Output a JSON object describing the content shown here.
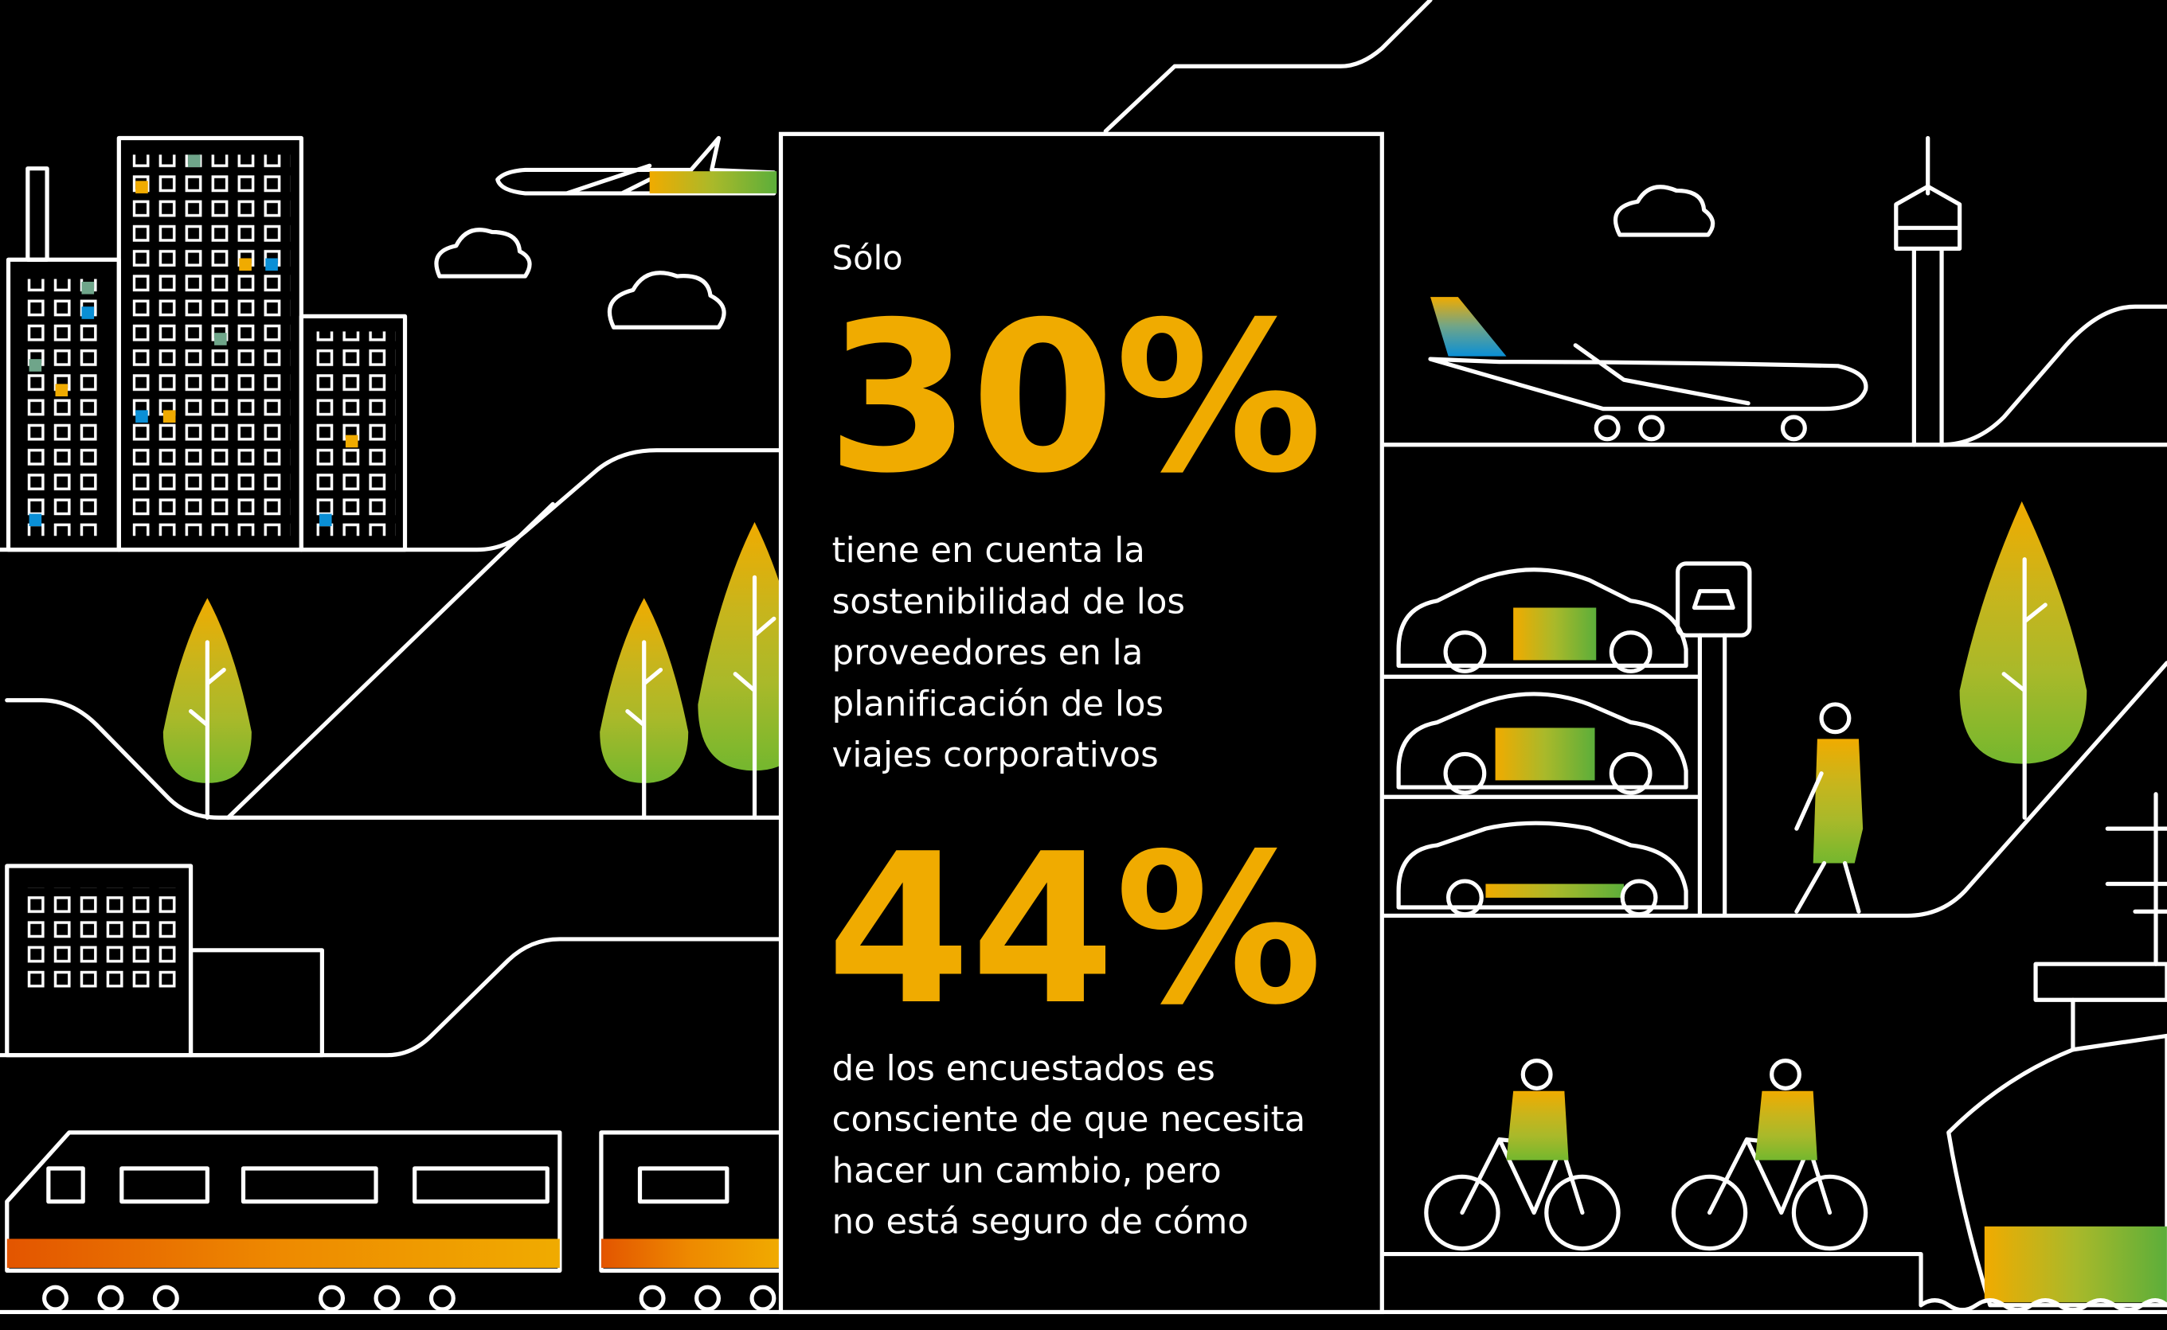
{
  "panel": {
    "intro": "Sólo",
    "stat1": "30%",
    "text1": [
      "tiene en cuenta la",
      "sostenibilidad de los",
      "proveedores en la",
      "planificación de los",
      "viajes corporativos"
    ],
    "stat2": "44%",
    "text2": [
      "de los encuestados es",
      "consciente de que necesita",
      "hacer un cambio, pero",
      "no está seguro de cómo"
    ]
  }
}
